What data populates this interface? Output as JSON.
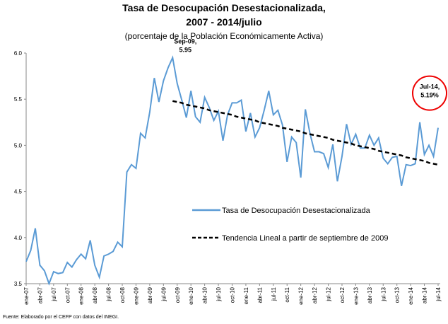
{
  "chart_data": {
    "type": "line",
    "title": [
      "Tasa de Desocupación Desestacionalizada,",
      "2007 - 2014/julio"
    ],
    "subtitle": "(porcentaje de la Población Económicamente Activa)",
    "source": "Fuente: Elaborado por el CEFP con datos del INEGI.",
    "categories": [
      "ene-07",
      null,
      null,
      "abr-07",
      null,
      null,
      "jul-07",
      null,
      null,
      "oct-07",
      null,
      null,
      "ene-08",
      null,
      null,
      "abr-08",
      null,
      null,
      "jul-08",
      null,
      null,
      "oct-08",
      null,
      null,
      "ene-09",
      null,
      null,
      "abr-09",
      null,
      null,
      "jul-09",
      null,
      null,
      "oct-09",
      null,
      null,
      "ene-10",
      null,
      null,
      "abr-10",
      null,
      null,
      "jul-10",
      null,
      null,
      "oct-10",
      null,
      null,
      "ene-11",
      null,
      null,
      "abr-11",
      null,
      null,
      "jul-11",
      null,
      null,
      "oct-11",
      null,
      null,
      "ene-12",
      null,
      null,
      "abr-12",
      null,
      null,
      "jul-12",
      null,
      null,
      "oct-12",
      null,
      null,
      "ene-13",
      null,
      null,
      "abr-13",
      null,
      null,
      "jul-13",
      null,
      null,
      "oct-13",
      null,
      null,
      "ene-14",
      null,
      null,
      "abr-14",
      null,
      null,
      "jul-14"
    ],
    "series": [
      {
        "name": "Tasa de Desocupación Desestacionalizada",
        "color": "#5b9bd5",
        "dashed": false,
        "values": [
          3.74,
          3.86,
          4.1,
          3.7,
          3.64,
          3.5,
          3.63,
          3.61,
          3.62,
          3.73,
          3.68,
          3.76,
          3.82,
          3.77,
          3.97,
          3.7,
          3.57,
          3.8,
          3.82,
          3.85,
          3.95,
          3.9,
          4.71,
          4.79,
          4.75,
          5.13,
          5.08,
          5.36,
          5.73,
          5.47,
          5.7,
          5.84,
          5.95,
          5.67,
          5.49,
          5.3,
          5.59,
          5.31,
          5.25,
          5.52,
          5.41,
          5.27,
          5.37,
          5.05,
          5.33,
          5.46,
          5.46,
          5.49,
          5.15,
          5.35,
          5.09,
          5.19,
          5.38,
          5.59,
          5.33,
          5.38,
          5.22,
          4.82,
          5.09,
          5.03,
          4.65,
          5.39,
          5.13,
          4.93,
          4.93,
          4.91,
          4.76,
          5.01,
          4.61,
          4.88,
          5.23,
          5.01,
          5.12,
          4.97,
          4.97,
          5.11,
          5.0,
          5.08,
          4.86,
          4.8,
          4.87,
          4.88,
          4.56,
          4.79,
          4.78,
          4.8,
          5.25,
          4.9,
          5.0,
          4.88,
          5.19
        ]
      },
      {
        "name": "Tendencia Lineal a partir de septiembre de 2009",
        "color": "#000000",
        "dashed": true,
        "values": [
          null,
          null,
          null,
          null,
          null,
          null,
          null,
          null,
          null,
          null,
          null,
          null,
          null,
          null,
          null,
          null,
          null,
          null,
          null,
          null,
          null,
          null,
          null,
          null,
          null,
          null,
          null,
          null,
          null,
          null,
          null,
          null,
          5.48,
          5.47,
          5.46,
          5.44,
          5.43,
          5.42,
          5.41,
          5.4,
          5.38,
          5.37,
          5.36,
          5.35,
          5.34,
          5.33,
          5.31,
          5.3,
          5.29,
          5.28,
          5.27,
          5.25,
          5.24,
          5.23,
          5.22,
          5.21,
          5.19,
          5.18,
          5.17,
          5.16,
          5.15,
          5.13,
          5.12,
          5.11,
          5.1,
          5.09,
          5.08,
          5.06,
          5.05,
          5.04,
          5.03,
          5.02,
          5.0,
          4.99,
          4.98,
          4.97,
          4.96,
          4.94,
          4.93,
          4.92,
          4.91,
          4.9,
          4.89,
          4.87,
          4.86,
          4.85,
          4.84,
          4.83,
          4.81,
          4.8,
          4.79
        ]
      }
    ],
    "ylim": [
      3.5,
      6.0
    ],
    "yticks": [
      {
        "value": 3.5,
        "label": "3.5"
      },
      {
        "value": 4.0,
        "label": "4.0"
      },
      {
        "value": 4.5,
        "label": "4.5"
      },
      {
        "value": 5.0,
        "label": "5.0"
      },
      {
        "value": 5.5,
        "label": "5.5"
      },
      {
        "value": 6.0,
        "label": "6.0"
      }
    ],
    "grid": false,
    "annotations": [
      {
        "lines": [
          "Sep-09,",
          "5.95"
        ],
        "index": 32,
        "circled": false
      },
      {
        "lines": [
          "Jul-14,",
          "5.19%"
        ],
        "index": 90,
        "circled": true
      }
    ]
  }
}
